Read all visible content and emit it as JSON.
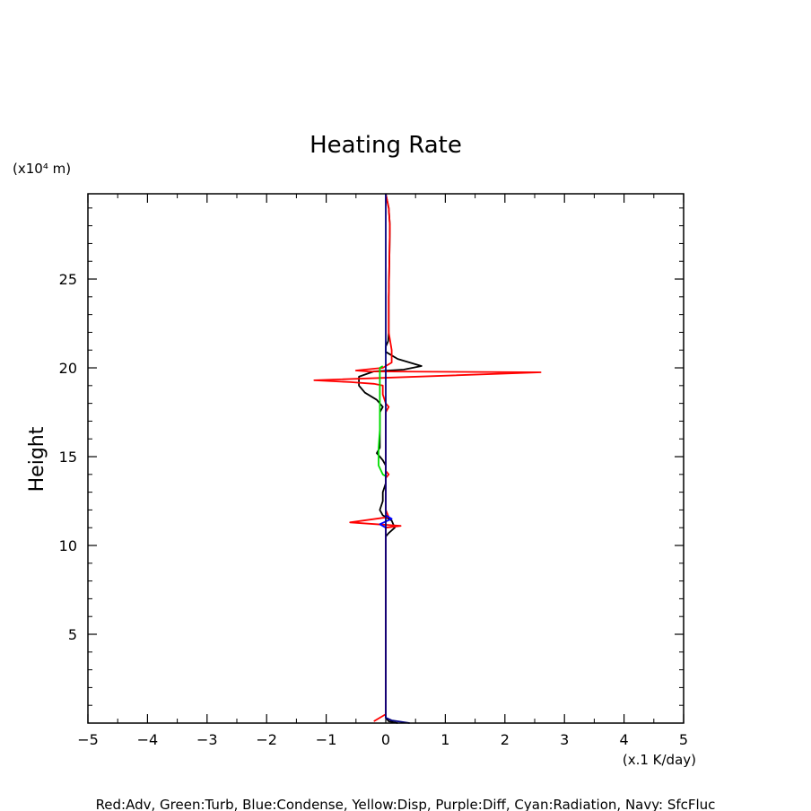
{
  "chart_data": {
    "type": "line",
    "title": "Heating Rate",
    "xlabel": "(x.1 K/day)",
    "ylabel": "Height",
    "y_unit": "(x10⁴ m)",
    "footer": "Red:Adv, Green:Turb, Blue:Condense, Yellow:Disp, Purple:Diff, Cyan:Radiation, Navy: SfcFluc",
    "xlim": [
      -5,
      5
    ],
    "ylim": [
      0,
      29.8
    ],
    "xticks": [
      -5,
      -4,
      -3,
      -2,
      -1,
      0,
      1,
      2,
      3,
      4,
      5
    ],
    "xtick_labels": [
      "−5",
      "−4",
      "−3",
      "−2",
      "−1",
      "0",
      "1",
      "2",
      "3",
      "4",
      "5"
    ],
    "yticks": [
      5,
      10,
      15,
      20,
      25
    ],
    "ytick_labels": [
      "5",
      "10",
      "15",
      "20",
      "25"
    ],
    "grid": false,
    "series": [
      {
        "color": "#000000",
        "points": [
          [
            0.0,
            29.8
          ],
          [
            0.05,
            29.0
          ],
          [
            0.07,
            28.0
          ],
          [
            0.06,
            26.0
          ],
          [
            0.05,
            24.0
          ],
          [
            0.05,
            22.0
          ],
          [
            0.04,
            21.5
          ],
          [
            0.0,
            21.2
          ],
          [
            0.0,
            20.9
          ],
          [
            0.2,
            20.5
          ],
          [
            0.6,
            20.1
          ],
          [
            0.3,
            19.9
          ],
          [
            -0.2,
            19.8
          ],
          [
            -0.45,
            19.5
          ],
          [
            -0.45,
            19.0
          ],
          [
            -0.35,
            18.6
          ],
          [
            -0.15,
            18.2
          ],
          [
            -0.05,
            17.8
          ],
          [
            -0.1,
            17.5
          ],
          [
            -0.1,
            16.5
          ],
          [
            -0.1,
            15.5
          ],
          [
            -0.15,
            15.2
          ],
          [
            -0.1,
            15.0
          ],
          [
            -0.05,
            14.8
          ],
          [
            0.0,
            14.5
          ],
          [
            0.0,
            14.0
          ],
          [
            0.0,
            13.5
          ],
          [
            -0.05,
            13.0
          ],
          [
            -0.05,
            12.5
          ],
          [
            -0.1,
            12.0
          ],
          [
            -0.05,
            11.7
          ],
          [
            0.1,
            11.4
          ],
          [
            0.15,
            11.0
          ],
          [
            0.05,
            10.7
          ],
          [
            0.0,
            10.5
          ],
          [
            0.0,
            10.0
          ],
          [
            0.0,
            5.0
          ],
          [
            0.0,
            1.0
          ],
          [
            0.0,
            0.3
          ],
          [
            0.05,
            0.1
          ],
          [
            0.2,
            0.0
          ]
        ]
      },
      {
        "color": "#ff0000",
        "points": [
          [
            0.0,
            29.8
          ],
          [
            0.05,
            29.0
          ],
          [
            0.07,
            28.0
          ],
          [
            0.06,
            26.0
          ],
          [
            0.05,
            24.0
          ],
          [
            0.05,
            22.0
          ],
          [
            0.1,
            21.0
          ],
          [
            0.1,
            20.3
          ],
          [
            -0.05,
            20.0
          ],
          [
            -0.5,
            19.85
          ],
          [
            -0.3,
            19.8
          ],
          [
            2.6,
            19.75
          ],
          [
            -1.2,
            19.3
          ],
          [
            -0.6,
            19.2
          ],
          [
            -0.2,
            19.1
          ],
          [
            -0.05,
            19.0
          ],
          [
            -0.05,
            18.5
          ],
          [
            0.0,
            18.0
          ],
          [
            0.05,
            17.8
          ],
          [
            0.0,
            17.5
          ],
          [
            0.0,
            15.0
          ],
          [
            0.0,
            14.2
          ],
          [
            0.05,
            14.0
          ],
          [
            0.0,
            13.8
          ],
          [
            0.0,
            12.0
          ],
          [
            0.05,
            11.6
          ],
          [
            -0.6,
            11.3
          ],
          [
            0.25,
            11.1
          ],
          [
            0.0,
            11.0
          ],
          [
            0.0,
            10.5
          ],
          [
            0.0,
            5.0
          ],
          [
            0.0,
            1.0
          ],
          [
            0.0,
            0.5
          ],
          [
            -0.2,
            0.1
          ]
        ]
      },
      {
        "color": "#00dd00",
        "points": [
          [
            -0.05,
            20.1
          ],
          [
            -0.1,
            20.0
          ],
          [
            -0.1,
            19.5
          ],
          [
            -0.1,
            18.0
          ],
          [
            -0.1,
            16.5
          ],
          [
            -0.12,
            15.5
          ],
          [
            -0.12,
            14.5
          ],
          [
            -0.05,
            14.0
          ],
          [
            0.0,
            13.9
          ]
        ]
      },
      {
        "color": "#0000ff",
        "points": [
          [
            0.0,
            11.7
          ],
          [
            0.1,
            11.5
          ],
          [
            -0.1,
            11.2
          ],
          [
            0.0,
            11.0
          ]
        ]
      },
      {
        "color": "#000080",
        "points": [
          [
            0.0,
            29.8
          ],
          [
            0.0,
            0.3
          ],
          [
            0.1,
            0.15
          ],
          [
            0.4,
            0.0
          ]
        ]
      }
    ]
  }
}
